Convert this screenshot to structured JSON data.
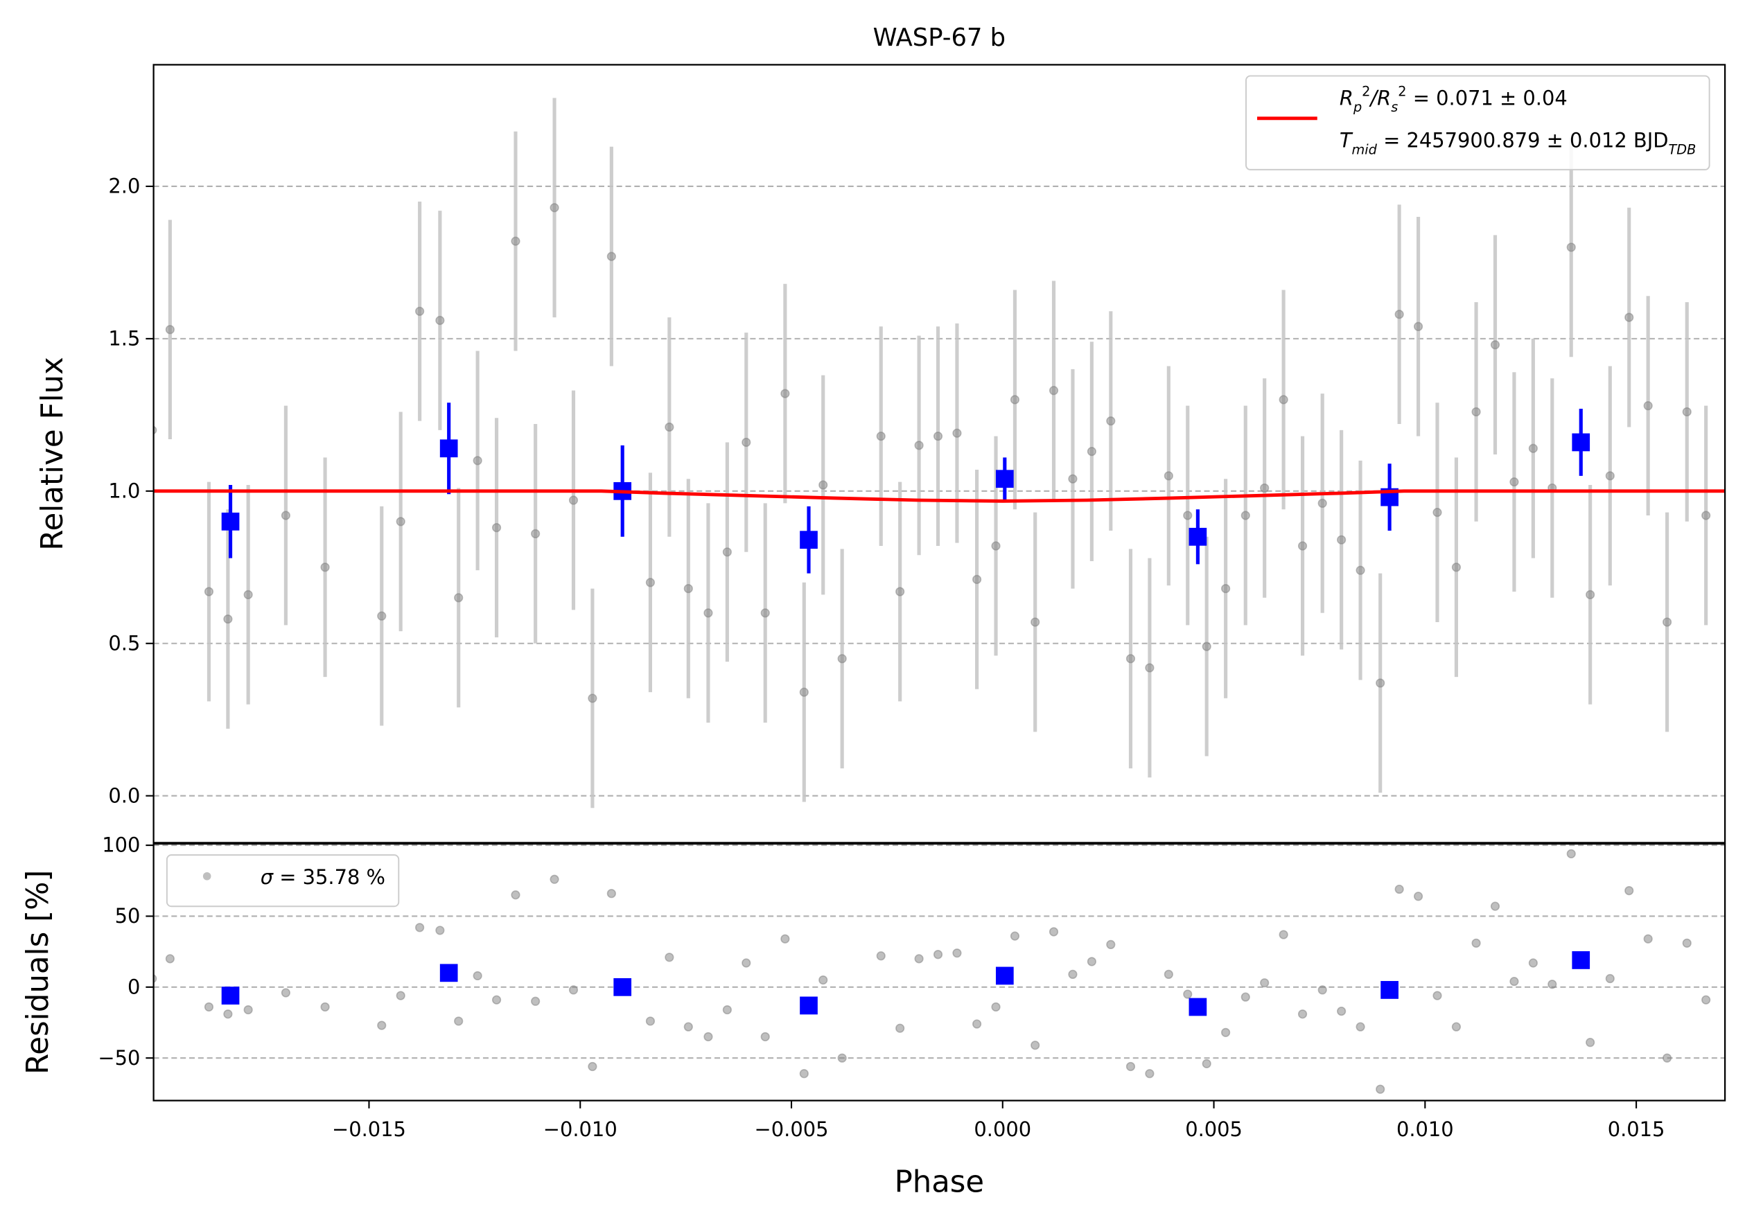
{
  "chart_data": [
    {
      "type": "scatter",
      "title": "WASP-67 b",
      "ylabel": "Relative Flux",
      "xlim": [
        -0.0201,
        0.0171
      ],
      "ylim": [
        -0.154,
        2.399
      ],
      "yticks": [
        {
          "value": 0,
          "label": "0.0"
        },
        {
          "value": 0.5,
          "label": "0.5"
        },
        {
          "value": 1,
          "label": "1.0"
        },
        {
          "value": 1.5,
          "label": "1.5"
        },
        {
          "value": 2,
          "label": "2.0"
        }
      ],
      "grid": true,
      "legend": "upper right",
      "series": [
        {
          "marker": "circle",
          "color": "#808080",
          "x": [
            -0.02013,
            -0.01971,
            -0.01879,
            -0.01834,
            -0.01786,
            -0.01697,
            -0.01604,
            -0.0147,
            -0.01425,
            -0.0138,
            -0.01332,
            -0.01288,
            -0.01243,
            -0.01198,
            -0.01153,
            -0.01106,
            -0.01061,
            -0.01016,
            -0.00971,
            -0.00926,
            -0.00834,
            -0.00789,
            -0.00744,
            -0.00697,
            -0.00652,
            -0.00607,
            -0.00562,
            -0.00515,
            -0.0047,
            -0.00425,
            -0.0038,
            -0.00288,
            -0.00243,
            -0.00198,
            -0.00153,
            -0.00108,
            -0.00061,
            -0.00016,
            0.00029,
            0.00077,
            0.00121,
            0.00166,
            0.00211,
            0.00256,
            0.00303,
            0.00348,
            0.00393,
            0.00438,
            0.00483,
            0.00528,
            0.00575,
            0.0062,
            0.00665,
            0.0071,
            0.00757,
            0.00802,
            0.00847,
            0.00894,
            0.00939,
            0.00984,
            0.01029,
            0.01074,
            0.01121,
            0.01166,
            0.01211,
            0.01256,
            0.01301,
            0.01346,
            0.01391,
            0.01438,
            0.01483,
            0.01528,
            0.01573,
            0.0162,
            0.01665
          ],
          "values": [
            1.2,
            1.53,
            0.67,
            0.58,
            0.66,
            0.92,
            0.75,
            0.59,
            0.9,
            1.59,
            1.56,
            0.65,
            1.1,
            0.88,
            1.82,
            0.86,
            1.93,
            0.97,
            0.32,
            1.77,
            0.7,
            1.21,
            0.68,
            0.6,
            0.8,
            1.16,
            0.6,
            1.32,
            0.34,
            1.02,
            0.45,
            1.18,
            0.67,
            1.15,
            1.18,
            1.19,
            0.71,
            0.82,
            1.3,
            0.57,
            1.33,
            1.04,
            1.13,
            1.23,
            0.45,
            0.42,
            1.05,
            0.92,
            0.49,
            0.68,
            0.92,
            1.01,
            1.3,
            0.82,
            0.96,
            0.84,
            0.74,
            0.37,
            1.58,
            1.54,
            0.93,
            0.75,
            1.26,
            1.48,
            1.03,
            1.14,
            1.01,
            1.8,
            0.66,
            1.05,
            1.57,
            1.28,
            0.57,
            1.26,
            0.92
          ],
          "errors": [
            0.36,
            0.36,
            0.36,
            0.36,
            0.36,
            0.36,
            0.36,
            0.36,
            0.36,
            0.36,
            0.36,
            0.36,
            0.36,
            0.36,
            0.36,
            0.36,
            0.36,
            0.36,
            0.36,
            0.36,
            0.36,
            0.36,
            0.36,
            0.36,
            0.36,
            0.36,
            0.36,
            0.36,
            0.36,
            0.36,
            0.36,
            0.36,
            0.36,
            0.36,
            0.36,
            0.36,
            0.36,
            0.36,
            0.36,
            0.36,
            0.36,
            0.36,
            0.36,
            0.36,
            0.36,
            0.36,
            0.36,
            0.36,
            0.36,
            0.36,
            0.36,
            0.36,
            0.36,
            0.36,
            0.36,
            0.36,
            0.36,
            0.36,
            0.36,
            0.36,
            0.36,
            0.36,
            0.36,
            0.36,
            0.36,
            0.36,
            0.36,
            0.36,
            0.36,
            0.36,
            0.36,
            0.36,
            0.36,
            0.36,
            0.36
          ]
        },
        {
          "marker": "square",
          "color": "#0000ff",
          "x": [
            -0.01828,
            -0.01311,
            -0.009,
            -0.00459,
            5e-05,
            0.00462,
            0.00916,
            0.01369
          ],
          "values": [
            0.9,
            1.14,
            1.0,
            0.84,
            1.04,
            0.85,
            0.98,
            1.16
          ],
          "errors": [
            0.12,
            0.15,
            0.15,
            0.11,
            0.07,
            0.09,
            0.11,
            0.11
          ]
        },
        {
          "marker": "line",
          "color": "#ff0000",
          "name": [
            [
              {
                "text": "R",
                "style": "italic"
              },
              {
                "text": "p",
                "style": "italic-sub"
              },
              {
                "text": "2",
                "style": "sup"
              },
              {
                "text": "/R",
                "style": "italic"
              },
              {
                "text": "s",
                "style": "italic-sub"
              },
              {
                "text": "2",
                "style": "sup"
              },
              {
                "text": " = 0.071 ± 0.04",
                "style": "normal"
              }
            ],
            [
              {
                "text": "T",
                "style": "italic"
              },
              {
                "text": "mid",
                "style": "italic-sub"
              },
              {
                "text": " = 2457900.879 ± 0.012 BJD",
                "style": "normal"
              },
              {
                "text": "TDB",
                "style": "italic-sub"
              }
            ]
          ],
          "x": [
            -0.0201,
            -0.012,
            -0.0095,
            -0.008,
            -0.006,
            -0.004,
            -0.002,
            0,
            0.002,
            0.004,
            0.006,
            0.008,
            0.0095,
            0.012,
            0.0171
          ],
          "values": [
            1,
            1,
            1,
            0.993,
            0.985,
            0.977,
            0.97,
            0.967,
            0.97,
            0.977,
            0.985,
            0.993,
            1,
            1,
            1
          ]
        }
      ]
    },
    {
      "type": "scatter",
      "ylabel": "Residuals [%]",
      "xlabel": "Phase",
      "xlim": [
        -0.0201,
        0.0171
      ],
      "ylim": [
        -80,
        101
      ],
      "xticks": [
        {
          "value": -0.015,
          "label": "−0.015"
        },
        {
          "value": -0.01,
          "label": "−0.010"
        },
        {
          "value": -0.005,
          "label": "−0.005"
        },
        {
          "value": 0,
          "label": "0.000"
        },
        {
          "value": 0.005,
          "label": "0.005"
        },
        {
          "value": 0.01,
          "label": "0.010"
        },
        {
          "value": 0.015,
          "label": "0.015"
        }
      ],
      "yticks": [
        {
          "value": -50,
          "label": "−50"
        },
        0,
        50,
        100
      ],
      "grid": true,
      "legend": "upper left",
      "series": [
        {
          "marker": "circle",
          "color": "#808080",
          "name": [
            [
              {
                "text": "σ",
                "style": "italic"
              },
              {
                "text": " = 35.78 %",
                "style": "normal"
              }
            ]
          ],
          "x": [
            -0.02013,
            -0.01971,
            -0.01879,
            -0.01834,
            -0.01786,
            -0.01697,
            -0.01604,
            -0.0147,
            -0.01425,
            -0.0138,
            -0.01332,
            -0.01288,
            -0.01243,
            -0.01198,
            -0.01153,
            -0.01106,
            -0.01061,
            -0.01016,
            -0.00971,
            -0.00926,
            -0.00834,
            -0.00789,
            -0.00744,
            -0.00697,
            -0.00652,
            -0.00607,
            -0.00562,
            -0.00515,
            -0.0047,
            -0.00425,
            -0.0038,
            -0.00288,
            -0.00243,
            -0.00198,
            -0.00153,
            -0.00108,
            -0.00061,
            -0.00016,
            0.00029,
            0.00077,
            0.00121,
            0.00166,
            0.00211,
            0.00256,
            0.00303,
            0.00348,
            0.00393,
            0.00438,
            0.00483,
            0.00528,
            0.00575,
            0.0062,
            0.00665,
            0.0071,
            0.00757,
            0.00802,
            0.00847,
            0.00894,
            0.00939,
            0.00984,
            0.01029,
            0.01074,
            0.01121,
            0.01166,
            0.01211,
            0.01256,
            0.01301,
            0.01346,
            0.01391,
            0.01438,
            0.01483,
            0.01528,
            0.01573,
            0.0162,
            0.01665
          ],
          "values": [
            6,
            20,
            -14,
            -19,
            -16,
            -4,
            -14,
            -27,
            -6,
            42,
            40,
            -24,
            8,
            -9,
            65,
            -10,
            76,
            -2,
            -56,
            66,
            -24,
            21,
            -28,
            -35,
            -16,
            17,
            -35,
            34,
            -61,
            5,
            -50,
            22,
            -29,
            20,
            23,
            24,
            -26,
            -14,
            36,
            -41,
            39,
            9,
            18,
            30,
            -56,
            -61,
            9,
            -5,
            -54,
            -32,
            -7,
            3,
            37,
            -19,
            -2,
            -17,
            -28,
            -72,
            69,
            64,
            -6,
            -28,
            31,
            57,
            4,
            17,
            2,
            94,
            -39,
            6,
            68,
            34,
            -50,
            31,
            -9
          ]
        },
        {
          "marker": "square",
          "color": "#0000ff",
          "x": [
            -0.01828,
            -0.01311,
            -0.009,
            -0.00459,
            5e-05,
            0.00462,
            0.00916,
            0.01369
          ],
          "values": [
            -6,
            10,
            0,
            -13,
            8,
            -14,
            -2,
            19
          ]
        }
      ]
    }
  ]
}
